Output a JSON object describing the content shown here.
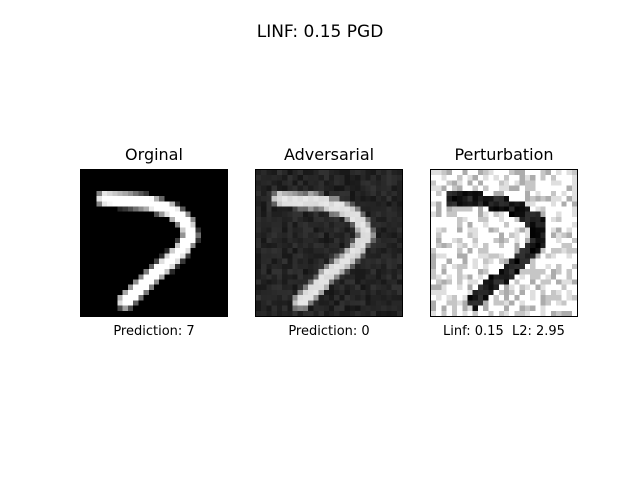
{
  "figure": {
    "title": "LINF: 0.15 PGD"
  },
  "panels": [
    {
      "title": "Orginal",
      "caption": "Prediction: 7",
      "colormap": "gray"
    },
    {
      "title": "Adversarial",
      "caption": "Prediction: 0",
      "colormap": "gray"
    },
    {
      "title": "Perturbation",
      "caption": "Linf: 0.15  L2: 2.95",
      "colormap": "gray"
    }
  ],
  "chart_data": [
    {
      "type": "heatmap",
      "title": "Orginal",
      "xlabel": "Prediction: 7",
      "grid_size": [
        28,
        28
      ],
      "image": "handwritten digit 7, white stroke on black"
    },
    {
      "type": "heatmap",
      "title": "Adversarial",
      "xlabel": "Prediction: 0",
      "grid_size": [
        28,
        28
      ],
      "image": "digit 7 with pixel noise on dark background"
    },
    {
      "type": "heatmap",
      "title": "Perturbation",
      "xlabel": "Linf: 0.15  L2: 2.95",
      "grid_size": [
        28,
        28
      ],
      "image": "perturbation map, light gray/white noise with dark stroke region"
    }
  ]
}
